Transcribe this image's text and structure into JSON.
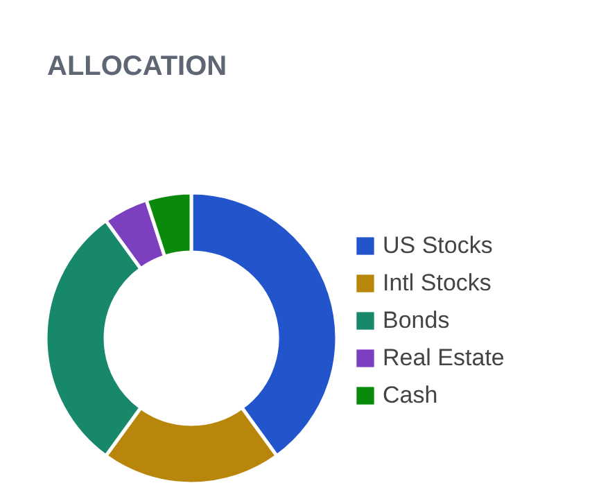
{
  "chart_data": {
    "type": "donut",
    "title": "ALLOCATION",
    "categories": [
      "US Stocks",
      "Intl Stocks",
      "Bonds",
      "Real Estate",
      "Cash"
    ],
    "values": [
      40,
      20,
      30,
      5,
      5
    ],
    "colors": [
      "#2255cc",
      "#b8860b",
      "#17896a",
      "#7b3fbf",
      "#0a8a0a"
    ],
    "legend": "right"
  }
}
